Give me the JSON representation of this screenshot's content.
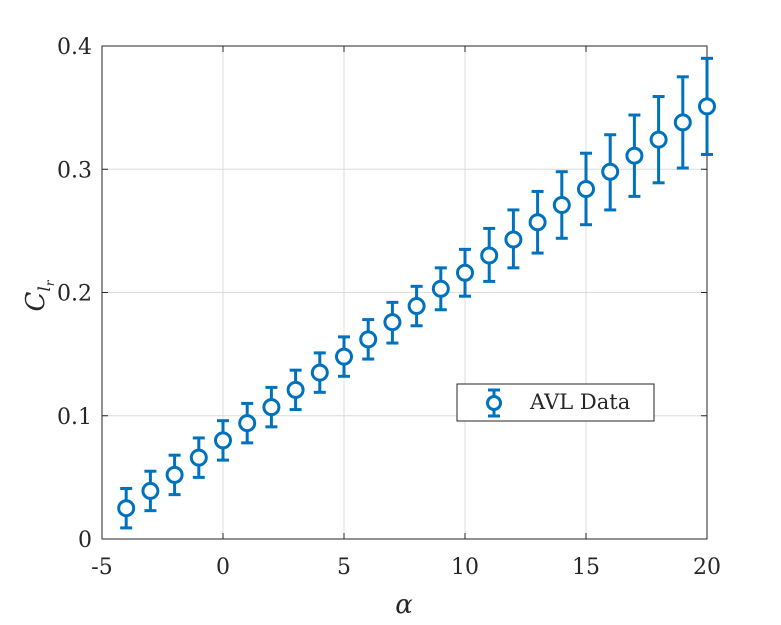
{
  "chart_data": {
    "type": "scatter",
    "title": "",
    "xlabel": "α",
    "ylabel": {
      "main": "C",
      "sub": "l",
      "subsub": "r"
    },
    "xlim": [
      -5,
      20
    ],
    "ylim": [
      0,
      0.4
    ],
    "xticks": [
      "-5",
      "0",
      "5",
      "10",
      "15",
      "20"
    ],
    "yticks": [
      "0",
      "0.1",
      "0.2",
      "0.3",
      "0.4"
    ],
    "grid": true,
    "legend_position": "right",
    "series": [
      {
        "name": "AVL Data",
        "color": "#0072BD",
        "marker": "circle-open",
        "error_bars": true,
        "x": [
          -4,
          -3,
          -2,
          -1,
          0,
          1,
          2,
          3,
          4,
          5,
          6,
          7,
          8,
          9,
          10,
          11,
          12,
          13,
          14,
          15,
          16,
          17,
          18,
          19,
          20
        ],
        "y": [
          0.025,
          0.039,
          0.052,
          0.066,
          0.08,
          0.094,
          0.107,
          0.121,
          0.135,
          0.148,
          0.162,
          0.176,
          0.189,
          0.203,
          0.216,
          0.23,
          0.243,
          0.257,
          0.271,
          0.284,
          0.298,
          0.311,
          0.324,
          0.338,
          0.351
        ],
        "y_lower": [
          0.009,
          0.023,
          0.036,
          0.05,
          0.064,
          0.078,
          0.091,
          0.105,
          0.119,
          0.132,
          0.146,
          0.159,
          0.173,
          0.186,
          0.197,
          0.209,
          0.22,
          0.232,
          0.244,
          0.255,
          0.267,
          0.278,
          0.289,
          0.301,
          0.312
        ],
        "y_upper": [
          0.041,
          0.055,
          0.068,
          0.082,
          0.096,
          0.11,
          0.123,
          0.137,
          0.151,
          0.164,
          0.178,
          0.192,
          0.205,
          0.22,
          0.235,
          0.252,
          0.267,
          0.282,
          0.298,
          0.313,
          0.328,
          0.344,
          0.359,
          0.375,
          0.39
        ]
      }
    ]
  }
}
